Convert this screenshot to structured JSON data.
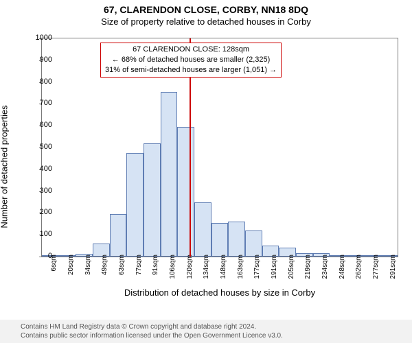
{
  "title": "67, CLARENDON CLOSE, CORBY, NN18 8DQ",
  "subtitle": "Size of property relative to detached houses in Corby",
  "yaxis_label": "Number of detached properties",
  "xaxis_label": "Distribution of detached houses by size in Corby",
  "footer_line1": "Contains HM Land Registry data © Crown copyright and database right 2024.",
  "footer_line2": "Contains public sector information licensed under the Open Government Licence v3.0.",
  "chart": {
    "type": "histogram",
    "ylim": [
      0,
      1000
    ],
    "ytick_step": 100,
    "bar_fill": "#d6e3f4",
    "bar_border": "#5f7db3",
    "border_color": "#7a7a7a",
    "background_color": "#ffffff",
    "categories": [
      "6sqm",
      "20sqm",
      "34sqm",
      "49sqm",
      "63sqm",
      "77sqm",
      "91sqm",
      "106sqm",
      "120sqm",
      "134sqm",
      "148sqm",
      "163sqm",
      "177sqm",
      "191sqm",
      "205sqm",
      "219sqm",
      "234sqm",
      "248sqm",
      "262sqm",
      "277sqm",
      "291sqm"
    ],
    "values": [
      5,
      5,
      12,
      60,
      195,
      475,
      520,
      755,
      595,
      250,
      155,
      160,
      120,
      50,
      40,
      15,
      15,
      5,
      5,
      5,
      5
    ],
    "vline": {
      "index": 8.7,
      "color": "#cc0000",
      "width": 2
    },
    "annotation": {
      "border_color": "#cc0000",
      "lines": [
        "67 CLARENDON CLOSE: 128sqm",
        "← 68% of detached houses are smaller (2,325)",
        "31% of semi-detached houses are larger (1,051) →"
      ]
    }
  }
}
